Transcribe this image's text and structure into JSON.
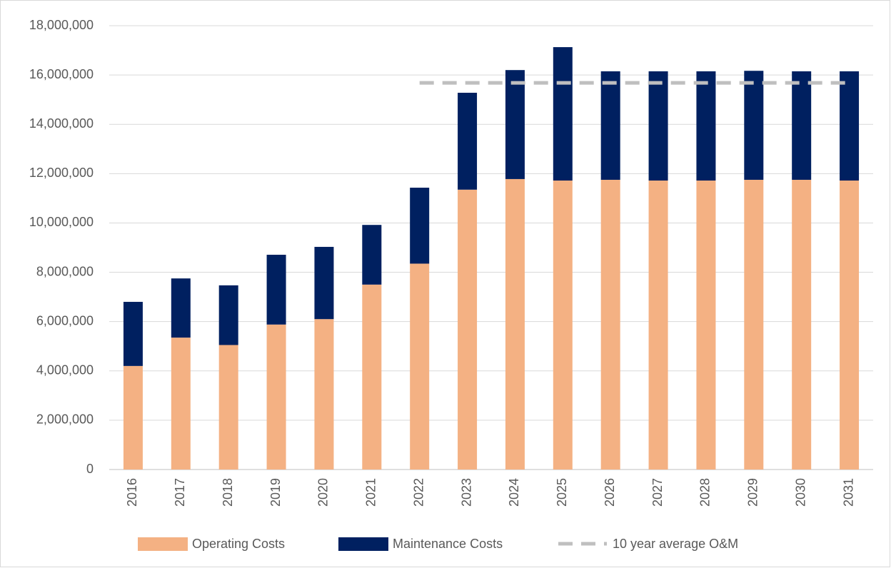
{
  "chart_data": {
    "type": "bar",
    "stacked": true,
    "categories": [
      "2016",
      "2017",
      "2018",
      "2019",
      "2020",
      "2021",
      "2022",
      "2023",
      "2024",
      "2025",
      "2026",
      "2027",
      "2028",
      "2029",
      "2030",
      "2031"
    ],
    "series": [
      {
        "name": "Operating Costs",
        "color": "#f4b183",
        "type": "bar",
        "values": [
          4200000,
          5350000,
          5050000,
          5880000,
          6100000,
          7500000,
          8350000,
          11350000,
          11780000,
          11720000,
          11750000,
          11720000,
          11720000,
          11750000,
          11750000,
          11720000
        ]
      },
      {
        "name": "Maintenance Costs",
        "color": "#002060",
        "type": "bar",
        "values": [
          2600000,
          2400000,
          2420000,
          2830000,
          2930000,
          2420000,
          3080000,
          3930000,
          4420000,
          5410000,
          4400000,
          4430000,
          4430000,
          4420000,
          4400000,
          4430000
        ]
      },
      {
        "name": "10 year average O&M",
        "color": "#bfbfbf",
        "type": "line",
        "dashed": true,
        "values": [
          null,
          null,
          null,
          null,
          null,
          null,
          15680000,
          15680000,
          15680000,
          15680000,
          15680000,
          15680000,
          15680000,
          15680000,
          15680000,
          15680000
        ]
      }
    ],
    "ylim": [
      0,
      18000000
    ],
    "yticks": [
      0,
      {
        "value": 2000000,
        "label": "2,000,000"
      },
      {
        "value": 4000000,
        "label": "4,000,000"
      },
      {
        "value": 6000000,
        "label": "6,000,000"
      },
      {
        "value": 8000000,
        "label": "8,000,000"
      },
      {
        "value": 10000000,
        "label": "10,000,000"
      },
      {
        "value": 12000000,
        "label": "12,000,000"
      },
      {
        "value": 14000000,
        "label": "14,000,000"
      },
      {
        "value": 16000000,
        "label": "16,000,000"
      },
      {
        "value": 18000000,
        "label": "18,000,000"
      }
    ],
    "grid": true,
    "legend": "bottom"
  }
}
